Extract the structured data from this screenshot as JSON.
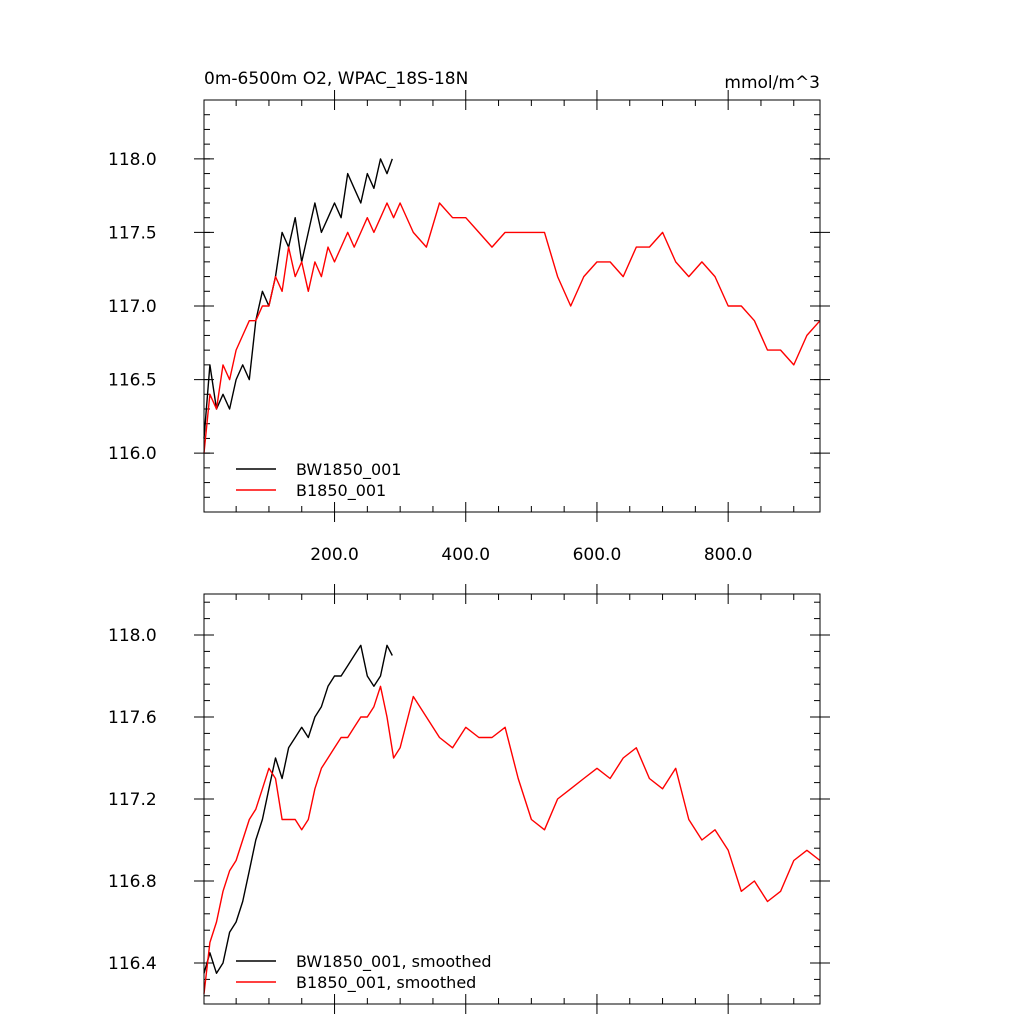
{
  "chart_data": [
    {
      "type": "line",
      "title_left": "0m-6500m O2, WPAC_18S-18N",
      "title_right": "mmol/m^3",
      "xlabel": "",
      "ylabel": "",
      "xlim": [
        1,
        940
      ],
      "ylim": [
        115.6,
        118.4
      ],
      "x_ticks": [
        200,
        400,
        600,
        800
      ],
      "x_tick_labels": [
        "200.0",
        "400.0",
        "600.0",
        "800.0"
      ],
      "y_ticks": [
        116.0,
        116.5,
        117.0,
        117.5,
        118.0
      ],
      "y_tick_labels": [
        "116.0",
        "116.5",
        "117.0",
        "117.5",
        "118.0"
      ],
      "grid": false,
      "legend_position": "bottom-left",
      "series": [
        {
          "name": "BW1850_001",
          "color": "#000000",
          "x": [
            1,
            10,
            20,
            30,
            40,
            50,
            60,
            70,
            80,
            90,
            100,
            110,
            120,
            130,
            140,
            150,
            160,
            170,
            180,
            190,
            200,
            210,
            220,
            230,
            240,
            250,
            260,
            270,
            280,
            288
          ],
          "values": [
            116.1,
            116.6,
            116.3,
            116.4,
            116.3,
            116.5,
            116.6,
            116.5,
            116.9,
            117.1,
            117.0,
            117.2,
            117.5,
            117.4,
            117.6,
            117.3,
            117.5,
            117.7,
            117.5,
            117.6,
            117.7,
            117.6,
            117.9,
            117.8,
            117.7,
            117.9,
            117.8,
            118.0,
            117.9,
            118.0
          ]
        },
        {
          "name": "B1850_001",
          "color": "#ff0000",
          "x": [
            1,
            10,
            20,
            30,
            40,
            50,
            60,
            70,
            80,
            90,
            100,
            110,
            120,
            130,
            140,
            150,
            160,
            170,
            180,
            190,
            200,
            210,
            220,
            230,
            240,
            250,
            260,
            270,
            280,
            290,
            300,
            320,
            340,
            360,
            380,
            400,
            420,
            440,
            460,
            480,
            500,
            520,
            540,
            560,
            580,
            600,
            620,
            640,
            660,
            680,
            700,
            720,
            740,
            760,
            780,
            800,
            820,
            840,
            860,
            880,
            900,
            920,
            940
          ],
          "values": [
            116.0,
            116.4,
            116.3,
            116.6,
            116.5,
            116.7,
            116.8,
            116.9,
            116.9,
            117.0,
            117.0,
            117.2,
            117.1,
            117.4,
            117.2,
            117.3,
            117.1,
            117.3,
            117.2,
            117.4,
            117.3,
            117.4,
            117.5,
            117.4,
            117.5,
            117.6,
            117.5,
            117.6,
            117.7,
            117.6,
            117.7,
            117.5,
            117.4,
            117.7,
            117.6,
            117.6,
            117.5,
            117.4,
            117.5,
            117.5,
            117.5,
            117.5,
            117.2,
            117.0,
            117.2,
            117.3,
            117.3,
            117.2,
            117.4,
            117.4,
            117.5,
            117.3,
            117.2,
            117.3,
            117.2,
            117.0,
            117.0,
            116.9,
            116.7,
            116.7,
            116.6,
            116.8,
            116.9
          ]
        }
      ]
    },
    {
      "type": "line",
      "title_left": "",
      "title_right": "",
      "xlabel": "",
      "ylabel": "",
      "xlim": [
        1,
        940
      ],
      "ylim": [
        116.2,
        118.2
      ],
      "x_ticks": [
        200,
        400,
        600,
        800
      ],
      "x_tick_labels": [],
      "y_ticks": [
        116.4,
        116.8,
        117.2,
        117.6,
        118.0
      ],
      "y_tick_labels": [
        "116.4",
        "116.8",
        "117.2",
        "117.6",
        "118.0"
      ],
      "grid": false,
      "legend_position": "bottom-left",
      "series": [
        {
          "name": "BW1850_001, smoothed",
          "color": "#000000",
          "x": [
            1,
            10,
            20,
            30,
            40,
            50,
            60,
            70,
            80,
            90,
            100,
            110,
            120,
            130,
            140,
            150,
            160,
            170,
            180,
            190,
            200,
            210,
            220,
            230,
            240,
            250,
            260,
            270,
            280,
            288
          ],
          "values": [
            116.35,
            116.45,
            116.35,
            116.4,
            116.55,
            116.6,
            116.7,
            116.85,
            117.0,
            117.1,
            117.25,
            117.4,
            117.3,
            117.45,
            117.5,
            117.55,
            117.5,
            117.6,
            117.65,
            117.75,
            117.8,
            117.8,
            117.85,
            117.9,
            117.95,
            117.8,
            117.75,
            117.8,
            117.95,
            117.9
          ]
        },
        {
          "name": "B1850_001, smoothed",
          "color": "#ff0000",
          "x": [
            1,
            10,
            20,
            30,
            40,
            50,
            60,
            70,
            80,
            90,
            100,
            110,
            120,
            130,
            140,
            150,
            160,
            170,
            180,
            190,
            200,
            210,
            220,
            230,
            240,
            250,
            260,
            270,
            280,
            290,
            300,
            320,
            340,
            360,
            380,
            400,
            420,
            440,
            460,
            480,
            500,
            520,
            540,
            560,
            580,
            600,
            620,
            640,
            660,
            680,
            700,
            720,
            740,
            760,
            780,
            800,
            820,
            840,
            860,
            880,
            900,
            920,
            940
          ],
          "values": [
            116.25,
            116.5,
            116.6,
            116.75,
            116.85,
            116.9,
            117.0,
            117.1,
            117.15,
            117.25,
            117.35,
            117.3,
            117.1,
            117.1,
            117.1,
            117.05,
            117.1,
            117.25,
            117.35,
            117.4,
            117.45,
            117.5,
            117.5,
            117.55,
            117.6,
            117.6,
            117.65,
            117.75,
            117.6,
            117.4,
            117.45,
            117.7,
            117.6,
            117.5,
            117.45,
            117.55,
            117.5,
            117.5,
            117.55,
            117.3,
            117.1,
            117.05,
            117.2,
            117.25,
            117.3,
            117.35,
            117.3,
            117.4,
            117.45,
            117.3,
            117.25,
            117.35,
            117.1,
            117.0,
            117.05,
            116.95,
            116.75,
            116.8,
            116.7,
            116.75,
            116.9,
            116.95,
            116.9
          ]
        }
      ]
    }
  ]
}
